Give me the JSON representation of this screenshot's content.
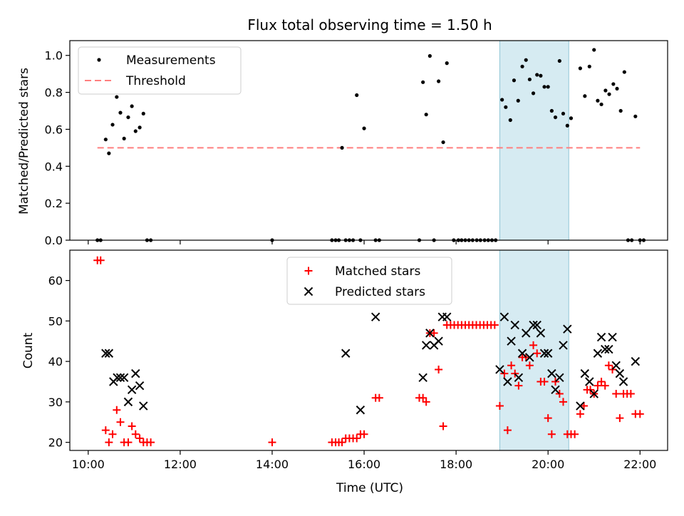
{
  "chart_data": [
    {
      "type": "scatter",
      "title": "Flux total observing time = 1.50 h",
      "xlabel": "",
      "ylabel": "Matched/Predicted stars",
      "xlim": [
        9.6,
        22.6
      ],
      "ylim": [
        0,
        1.08
      ],
      "yticks": [
        0.0,
        0.2,
        0.4,
        0.6,
        0.8,
        1.0
      ],
      "ytick_labels": [
        "0.0",
        "0.2",
        "0.4",
        "0.6",
        "0.8",
        "1.0"
      ],
      "shaded_region": [
        18.95,
        20.45
      ],
      "threshold": {
        "value": 0.5,
        "x": [
          10.2,
          22.0
        ],
        "color": "#ff7f7f"
      },
      "legend": {
        "position": "top-left",
        "entries": [
          "Measurements",
          "Threshold"
        ]
      },
      "series": [
        {
          "name": "Measurements",
          "color": "#000000",
          "x": [
            10.2,
            10.27,
            10.38,
            10.45,
            10.53,
            10.62,
            10.7,
            10.78,
            10.87,
            10.95,
            11.03,
            11.12,
            11.2,
            11.28,
            11.36,
            14.0,
            15.3,
            15.38,
            15.45,
            15.52,
            15.6,
            15.68,
            15.76,
            15.84,
            15.92,
            16.0,
            16.25,
            16.33,
            17.2,
            17.28,
            17.35,
            17.43,
            17.52,
            17.62,
            17.72,
            17.8,
            17.95,
            18.05,
            18.12,
            18.2,
            18.28,
            18.36,
            18.45,
            18.53,
            18.62,
            18.7,
            18.78,
            18.86,
            19.0,
            19.08,
            19.18,
            19.26,
            19.35,
            19.44,
            19.52,
            19.6,
            19.68,
            19.76,
            19.84,
            19.92,
            20.0,
            20.08,
            20.16,
            20.25,
            20.33,
            20.42,
            20.5,
            20.7,
            20.8,
            20.9,
            21.0,
            21.08,
            21.16,
            21.25,
            21.33,
            21.42,
            21.5,
            21.58,
            21.66,
            21.74,
            21.82,
            21.9,
            22.0,
            22.08
          ],
          "y": [
            0.0,
            0.0,
            0.545,
            0.47,
            0.625,
            0.775,
            0.69,
            0.55,
            0.665,
            0.725,
            0.59,
            0.61,
            0.685,
            0.0,
            0.0,
            0.0,
            0.0,
            0.0,
            0.0,
            0.5,
            0.0,
            0.0,
            0.0,
            0.785,
            0.0,
            0.605,
            0.0,
            0.0,
            0.0,
            0.855,
            0.68,
            0.997,
            0.0,
            0.86,
            0.53,
            0.958,
            0.0,
            0.0,
            0.0,
            0.0,
            0.0,
            0.0,
            0.0,
            0.0,
            0.0,
            0.0,
            0.0,
            0.0,
            0.76,
            0.72,
            0.65,
            0.865,
            0.755,
            0.94,
            0.975,
            0.87,
            0.795,
            0.895,
            0.89,
            0.83,
            0.83,
            0.7,
            0.665,
            0.97,
            0.685,
            0.62,
            0.66,
            0.93,
            0.78,
            0.94,
            1.03,
            0.755,
            0.735,
            0.81,
            0.79,
            0.845,
            0.82,
            0.7,
            0.91,
            0.0,
            0.0,
            0.67,
            0.0,
            0.0
          ]
        }
      ]
    },
    {
      "type": "scatter",
      "title": "",
      "xlabel": "Time (UTC)",
      "ylabel": "Count",
      "xlim": [
        9.6,
        22.6
      ],
      "ylim": [
        18,
        67.5
      ],
      "xticks": [
        10,
        12,
        14,
        16,
        18,
        20,
        22
      ],
      "xtick_labels": [
        "10:00",
        "12:00",
        "14:00",
        "16:00",
        "18:00",
        "20:00",
        "22:00"
      ],
      "yticks": [
        20,
        30,
        40,
        50,
        60
      ],
      "ytick_labels": [
        "20",
        "30",
        "40",
        "50",
        "60"
      ],
      "shaded_region": [
        18.95,
        20.45
      ],
      "legend": {
        "position": "top-center",
        "entries": [
          "Matched stars",
          "Predicted stars"
        ]
      },
      "series": [
        {
          "name": "Matched stars",
          "marker": "+",
          "color": "#ff0000",
          "x": [
            10.2,
            10.27,
            10.38,
            10.45,
            10.53,
            10.62,
            10.7,
            10.78,
            10.87,
            10.95,
            11.03,
            11.12,
            11.2,
            11.28,
            11.36,
            14.0,
            15.3,
            15.38,
            15.45,
            15.52,
            15.6,
            15.68,
            15.76,
            15.84,
            15.92,
            16.0,
            16.25,
            16.33,
            17.2,
            17.28,
            17.35,
            17.43,
            17.52,
            17.62,
            17.72,
            17.8,
            17.88,
            17.96,
            18.04,
            18.12,
            18.2,
            18.28,
            18.36,
            18.44,
            18.52,
            18.6,
            18.68,
            18.76,
            18.84,
            18.95,
            19.05,
            19.12,
            19.2,
            19.28,
            19.36,
            19.44,
            19.52,
            19.6,
            19.68,
            19.76,
            19.84,
            19.92,
            20.0,
            20.08,
            20.16,
            20.25,
            20.33,
            20.42,
            20.5,
            20.58,
            20.7,
            20.78,
            20.85,
            20.92,
            21.0,
            21.08,
            21.16,
            21.24,
            21.32,
            21.4,
            21.48,
            21.56,
            21.64,
            21.72,
            21.8,
            21.9,
            22.0
          ],
          "y": [
            65,
            65,
            23,
            20,
            22,
            28,
            25,
            20,
            20,
            24,
            22,
            21,
            20,
            20,
            20,
            20,
            20,
            20,
            20,
            20,
            21,
            21,
            21,
            21,
            22,
            22,
            31,
            31,
            31,
            31,
            30,
            47,
            47,
            38,
            24,
            49,
            49,
            49,
            49,
            49,
            49,
            49,
            49,
            49,
            49,
            49,
            49,
            49,
            49,
            29,
            37,
            23,
            39,
            37,
            34,
            41,
            41,
            39,
            44,
            42,
            35,
            35,
            26,
            22,
            35,
            32,
            30,
            22,
            22,
            22,
            27,
            29,
            33,
            33,
            32,
            34,
            35,
            34,
            39,
            38,
            32,
            26,
            32,
            32,
            32,
            27,
            27
          ]
        },
        {
          "name": "Predicted stars",
          "marker": "x",
          "color": "#000000",
          "x": [
            10.38,
            10.45,
            10.55,
            10.63,
            10.7,
            10.78,
            10.87,
            10.95,
            11.03,
            11.12,
            11.2,
            15.6,
            15.92,
            16.25,
            17.28,
            17.35,
            17.43,
            17.52,
            17.62,
            17.7,
            17.8,
            18.95,
            19.05,
            19.12,
            19.2,
            19.28,
            19.36,
            19.44,
            19.52,
            19.6,
            19.68,
            19.76,
            19.84,
            19.92,
            20.0,
            20.08,
            20.16,
            20.25,
            20.33,
            20.42,
            20.7,
            20.8,
            20.9,
            21.0,
            21.08,
            21.16,
            21.24,
            21.32,
            21.4,
            21.48,
            21.56,
            21.64,
            21.9
          ],
          "y": [
            42,
            42,
            35,
            36,
            36,
            36,
            30,
            33,
            37,
            34,
            29,
            42,
            28,
            51,
            36,
            44,
            47,
            44,
            45,
            51,
            51,
            38,
            51,
            35,
            45,
            49,
            36,
            42,
            47,
            41,
            49,
            49,
            47,
            42,
            42,
            37,
            33,
            36,
            44,
            48,
            29,
            37,
            35,
            32,
            42,
            46,
            43,
            43,
            46,
            39,
            37,
            35,
            40
          ]
        }
      ]
    }
  ]
}
